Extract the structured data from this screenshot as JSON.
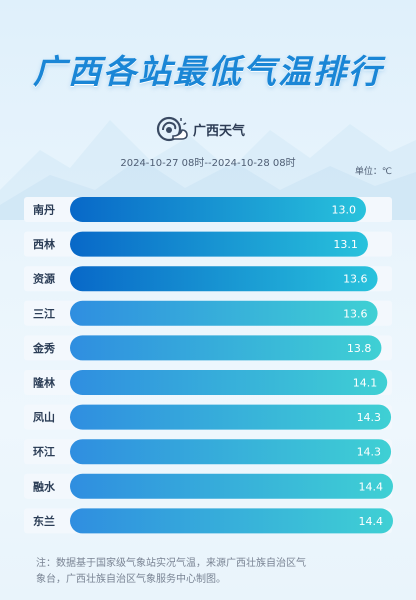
{
  "header": {
    "title": "广西各站最低气温排行",
    "brand_name": "广西天气",
    "date_range": "2024-10-27 08时--2024-10-28 08时",
    "unit": "单位：℃"
  },
  "chart_data": {
    "type": "bar",
    "orientation": "horizontal",
    "title": "广西各站最低气温排行",
    "unit": "℃",
    "categories": [
      "南丹",
      "西林",
      "资源",
      "三江",
      "金秀",
      "隆林",
      "凤山",
      "环江",
      "融水",
      "东兰"
    ],
    "values": [
      13.0,
      13.1,
      13.6,
      13.6,
      13.8,
      14.1,
      14.3,
      14.3,
      14.4,
      14.4
    ],
    "value_labels": [
      "13.0",
      "13.1",
      "13.6",
      "13.6",
      "13.8",
      "14.1",
      "14.3",
      "14.3",
      "14.4",
      "14.4"
    ],
    "top3_color_start": "#0868c8",
    "top3_color_end": "#28c2dc",
    "rest_color_start": "#2f8ee0",
    "rest_color_end": "#3fd0d4",
    "row_background": "#f3f8fd"
  },
  "footnote": {
    "line1": "注：数据基于国家级气象站实况气温，来源广西壮族自治区气",
    "line2": "象台，广西壮族自治区气象服务中心制图。"
  }
}
